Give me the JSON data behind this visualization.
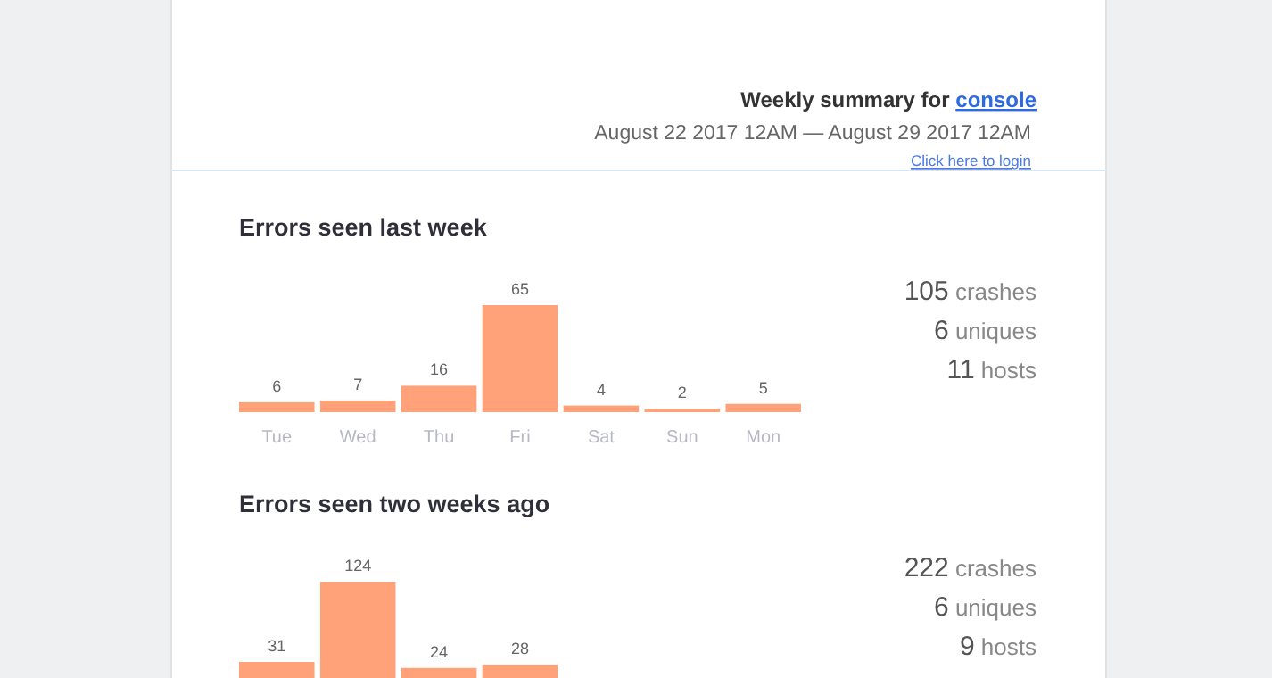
{
  "chart_data": [
    {
      "type": "bar",
      "title": "Errors seen last week",
      "categories": [
        "Tue",
        "Wed",
        "Thu",
        "Fri",
        "Sat",
        "Sun",
        "Mon"
      ],
      "values": [
        6,
        7,
        16,
        65,
        4,
        2,
        5
      ],
      "color": "#ffa27a",
      "data_labels": true,
      "annotations": [
        "Weekly summary for console",
        "August 22 2017 12AM — August 29 2017 12AM",
        "Click here to login",
        "105 crashes",
        "6 uniques",
        "11 hosts"
      ]
    },
    {
      "type": "bar",
      "title": "Errors seen two weeks ago",
      "categories": [
        null,
        null,
        null,
        null,
        null,
        null,
        null
      ],
      "values": [
        31,
        124,
        24,
        28,
        null,
        null,
        null
      ],
      "color": "#ffa27a",
      "data_labels": true,
      "annotations": [
        "222 crashes",
        "6 uniques",
        "9 hosts"
      ]
    }
  ]
}
